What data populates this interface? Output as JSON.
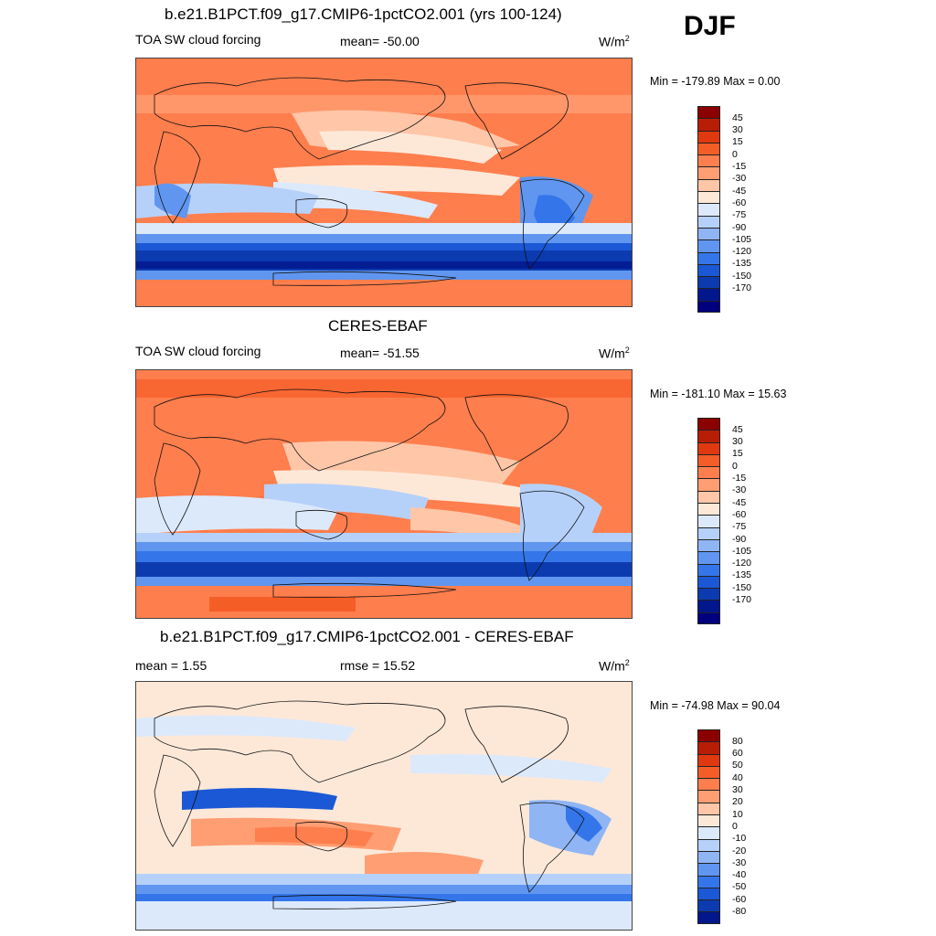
{
  "season": "DJF",
  "panels": [
    {
      "title": "b.e21.B1PCT.f09_g17.CMIP6-1pctCO2.001 (yrs 100-124)",
      "left_label": "TOA SW cloud forcing",
      "center_label": "mean= -50.00",
      "units": "W/m",
      "units_sup": "2",
      "minmax": "Min = -179.89 Max =   0.00",
      "colors": [
        "#8b0000",
        "#b81d05",
        "#e0390f",
        "#f55d27",
        "#ff7e4d",
        "#ff9e73",
        "#ffc6a8",
        "#fde8d8",
        "#dce9fb",
        "#b6d1f9",
        "#8fb5f4",
        "#6096ef",
        "#3476ea",
        "#1b58d5",
        "#0c3bb0",
        "#03178c",
        "#00007f"
      ],
      "ticks": [
        "45",
        "30",
        "15",
        "0",
        "-15",
        "-30",
        "-45",
        "-60",
        "-75",
        "-90",
        "-105",
        "-120",
        "-135",
        "-150",
        "-170"
      ]
    },
    {
      "title": "CERES-EBAF",
      "left_label": "TOA SW cloud forcing",
      "center_label": "mean= -51.55",
      "units": "W/m",
      "units_sup": "2",
      "minmax": "Min = -181.10 Max =  15.63",
      "colors": [
        "#8b0000",
        "#b81d05",
        "#e0390f",
        "#f55d27",
        "#ff7e4d",
        "#ff9e73",
        "#ffc6a8",
        "#fde8d8",
        "#dce9fb",
        "#b6d1f9",
        "#8fb5f4",
        "#6096ef",
        "#3476ea",
        "#1b58d5",
        "#0c3bb0",
        "#03178c",
        "#00007f"
      ],
      "ticks": [
        "45",
        "30",
        "15",
        "0",
        "-15",
        "-30",
        "-45",
        "-60",
        "-75",
        "-90",
        "-105",
        "-120",
        "-135",
        "-150",
        "-170"
      ]
    },
    {
      "title": "b.e21.B1PCT.f09_g17.CMIP6-1pctCO2.001 - CERES-EBAF",
      "left_label": "mean =   1.55",
      "center_label": "rmse =  15.52",
      "units": "W/m",
      "units_sup": "2",
      "minmax": "Min = -74.98 Max =  90.04",
      "colors": [
        "#8b0000",
        "#b81d05",
        "#e0390f",
        "#f55d27",
        "#ff7e4d",
        "#ff9e73",
        "#ffc6a8",
        "#fde8d8",
        "#dce9fb",
        "#b6d1f9",
        "#8fb5f4",
        "#6096ef",
        "#3476ea",
        "#1b58d5",
        "#0c3bb0",
        "#03178c"
      ],
      "ticks": [
        "80",
        "60",
        "50",
        "40",
        "30",
        "20",
        "10",
        "0",
        "-10",
        "-20",
        "-30",
        "-40",
        "-50",
        "-60",
        "-80"
      ]
    }
  ],
  "chart_data": [
    {
      "type": "heatmap",
      "title": "b.e21.B1PCT.f09_g17.CMIP6-1pctCO2.001 (yrs 100-124)",
      "variable": "TOA SW cloud forcing",
      "units": "W/m2",
      "season": "DJF",
      "mean": -50.0,
      "min": -179.89,
      "max": 0.0,
      "contour_levels": [
        45,
        30,
        15,
        0,
        -15,
        -30,
        -45,
        -60,
        -75,
        -90,
        -105,
        -120,
        -135,
        -150,
        -170
      ]
    },
    {
      "type": "heatmap",
      "title": "CERES-EBAF",
      "variable": "TOA SW cloud forcing",
      "units": "W/m2",
      "season": "DJF",
      "mean": -51.55,
      "min": -181.1,
      "max": 15.63,
      "contour_levels": [
        45,
        30,
        15,
        0,
        -15,
        -30,
        -45,
        -60,
        -75,
        -90,
        -105,
        -120,
        -135,
        -150,
        -170
      ]
    },
    {
      "type": "heatmap",
      "title": "b.e21.B1PCT.f09_g17.CMIP6-1pctCO2.001 - CERES-EBAF",
      "units": "W/m2",
      "season": "DJF",
      "mean": 1.55,
      "rmse": 15.52,
      "min": -74.98,
      "max": 90.04,
      "contour_levels": [
        80,
        60,
        50,
        40,
        30,
        20,
        10,
        0,
        -10,
        -20,
        -30,
        -40,
        -50,
        -60,
        -80
      ]
    }
  ]
}
